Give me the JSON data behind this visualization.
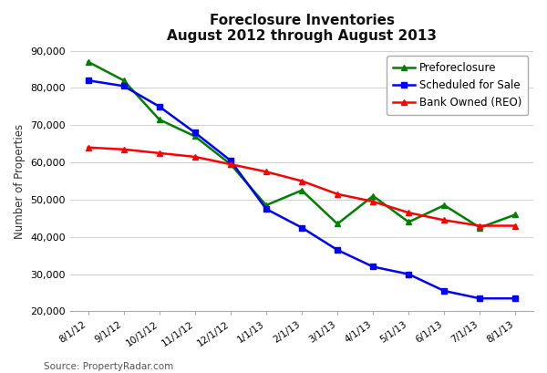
{
  "title_line1": "Foreclosure Inventories",
  "title_line2": "August 2012 through August 2013",
  "ylabel": "Number of Properties",
  "source": "Source: PropertyRadar.com",
  "x_labels": [
    "8/1/12",
    "9/1/12",
    "10/1/12",
    "11/1/12",
    "12/1/12",
    "1/1/13",
    "2/1/13",
    "3/1/13",
    "4/1/13",
    "5/1/13",
    "6/1/13",
    "7/1/13",
    "8/1/13"
  ],
  "preforeclosure": [
    87000,
    82000,
    71500,
    67000,
    59500,
    48500,
    52500,
    43500,
    51000,
    44000,
    48500,
    42500,
    46000
  ],
  "scheduled_for_sale": [
    82000,
    80500,
    75000,
    68000,
    60500,
    47500,
    42500,
    36500,
    32000,
    30000,
    25500,
    23500,
    23500
  ],
  "bank_owned_reo": [
    64000,
    63500,
    62500,
    61500,
    59500,
    57500,
    55000,
    51500,
    49500,
    46500,
    44500,
    43000,
    43000
  ],
  "preforeclosure_color": "#008000",
  "scheduled_color": "#0000ff",
  "reo_color": "#ff0000",
  "ylim": [
    20000,
    90000
  ],
  "yticks": [
    20000,
    30000,
    40000,
    50000,
    60000,
    70000,
    80000,
    90000
  ],
  "bg_color": "#ffffff",
  "grid_color": "#d0d0d0",
  "preforeclosure_label": "Preforeclosure",
  "scheduled_label": "Scheduled for Sale",
  "reo_label": "Bank Owned (REO)"
}
